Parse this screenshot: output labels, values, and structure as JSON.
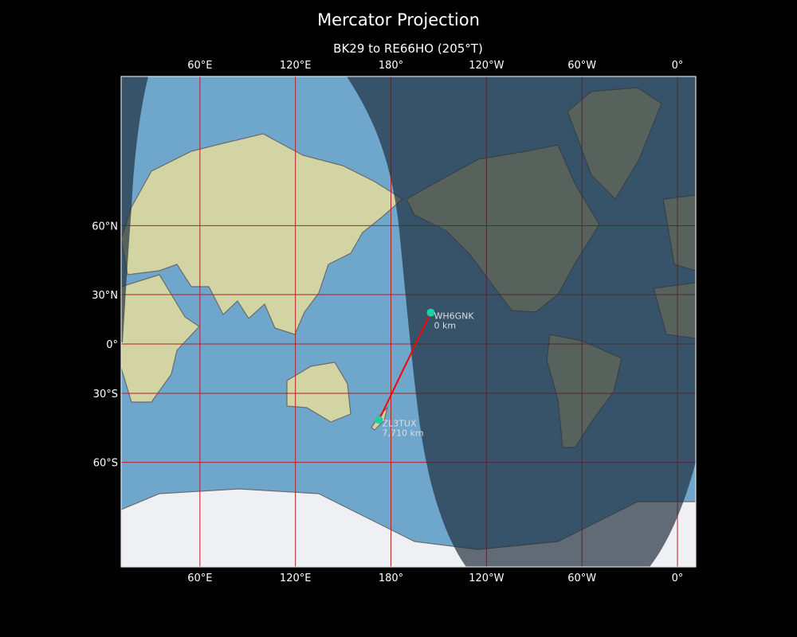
{
  "title": "Mercator Projection",
  "subtitle": "BK29 to RE66HO (205°T)",
  "map": {
    "projection": "Mercator",
    "extent": {
      "lon_min": 10.5,
      "lon_max": 371.5,
      "lat_min": -80,
      "lat_max": 84
    },
    "lon_ticks": [
      {
        "lon": 60,
        "label": "60°E"
      },
      {
        "lon": 120,
        "label": "120°E"
      },
      {
        "lon": 180,
        "label": "180°"
      },
      {
        "lon": 240,
        "label": "120°W"
      },
      {
        "lon": 300,
        "label": "60°W"
      },
      {
        "lon": 360,
        "label": "0°"
      }
    ],
    "lat_ticks": [
      {
        "lat": 60,
        "label": "60°N"
      },
      {
        "lat": 30,
        "label": "30°N"
      },
      {
        "lat": 0,
        "label": "0°"
      },
      {
        "lat": -30,
        "label": "30°S"
      },
      {
        "lat": -60,
        "label": "60°S"
      }
    ],
    "grid": true,
    "night_shading": true,
    "colors": {
      "grid": "#b22222",
      "path": "#ff0000",
      "marker": "#1fd1a0",
      "ocean": "#6fa6cc",
      "land": "#d3d4a4",
      "night": "#1e2c3a"
    },
    "stations": [
      {
        "call": "WH6GNK",
        "distance": "0 km",
        "lat": 19.6,
        "lon": -155
      },
      {
        "call": "ZL3TUX",
        "distance": "7,710 km",
        "lat": -43.5,
        "lon": 172.5
      }
    ]
  }
}
